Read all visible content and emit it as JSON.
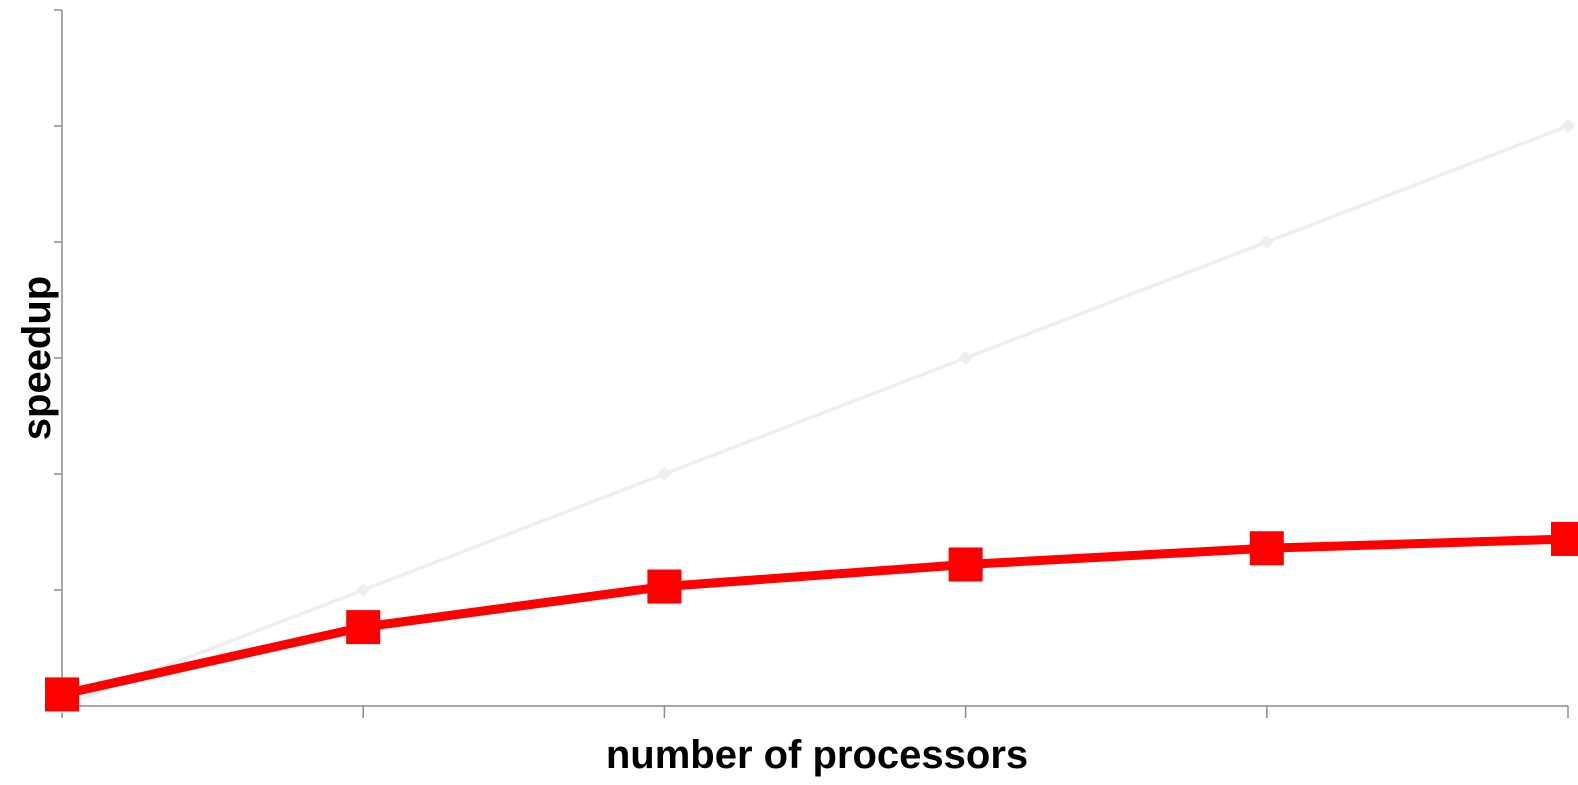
{
  "chart_data": {
    "type": "line",
    "title": "",
    "xlabel": "number of processors",
    "ylabel": "speedup",
    "x": [
      0,
      1,
      2,
      3,
      4,
      5
    ],
    "xlim": [
      0,
      5
    ],
    "ylim": [
      0,
      6
    ],
    "x_tick_labels_visible": false,
    "y_tick_labels_visible": false,
    "grid": false,
    "legend": "none",
    "series": [
      {
        "values": [
          0,
          1,
          2,
          3,
          4,
          5
        ],
        "color": "#eeeeee",
        "marker": "diamond",
        "line": "thin"
      },
      {
        "values": [
          0.1,
          0.68,
          1.03,
          1.22,
          1.36,
          1.44
        ],
        "color": "#ff0000",
        "marker": "square",
        "line": "thick"
      }
    ]
  }
}
